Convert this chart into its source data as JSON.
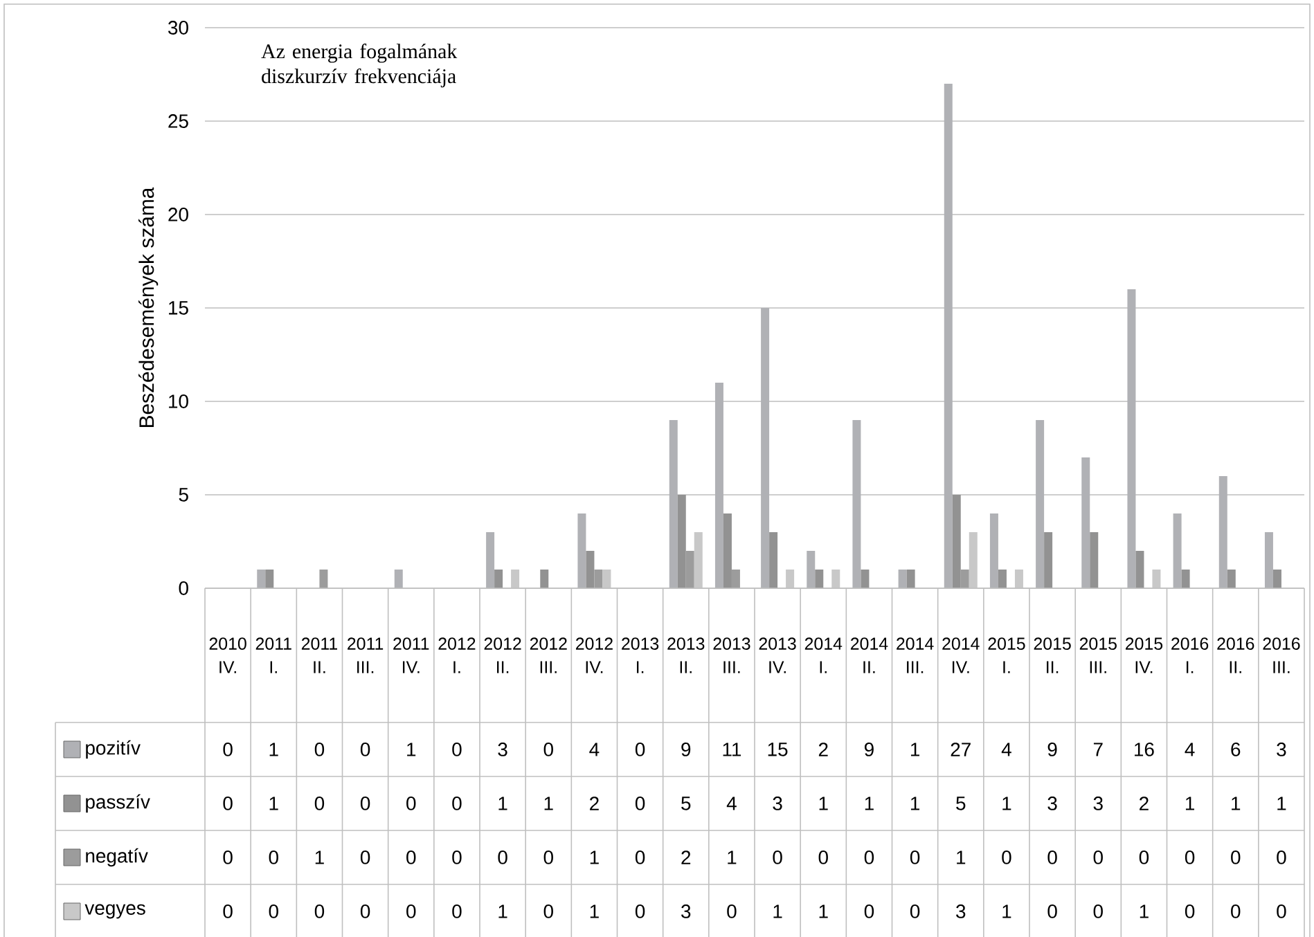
{
  "chart_data": {
    "type": "bar",
    "title": "Az energia fogalmának diszkurzív frekvenciája",
    "ylabel": "Beszédesemények száma",
    "categories": [
      "2010 IV.",
      "2011 I.",
      "2011 II.",
      "2011 III.",
      "2011 IV.",
      "2012 I.",
      "2012 II.",
      "2012 III.",
      "2012 IV.",
      "2013 I.",
      "2013 II.",
      "2013 III.",
      "2013 IV.",
      "2014 I.",
      "2014 II.",
      "2014 III.",
      "2014 IV.",
      "2015 I.",
      "2015 II.",
      "2015 III.",
      "2015 IV.",
      "2016 I.",
      "2016 II.",
      "2016 III."
    ],
    "series": [
      {
        "name": "pozitív",
        "color": "#b0b1b5",
        "values": [
          0,
          1,
          0,
          0,
          1,
          0,
          3,
          0,
          4,
          0,
          9,
          11,
          15,
          2,
          9,
          1,
          27,
          4,
          9,
          7,
          16,
          4,
          6,
          3
        ]
      },
      {
        "name": "passzív",
        "color": "#929292",
        "values": [
          0,
          1,
          0,
          0,
          0,
          0,
          1,
          1,
          2,
          0,
          5,
          4,
          3,
          1,
          1,
          1,
          5,
          1,
          3,
          3,
          2,
          1,
          1,
          1
        ]
      },
      {
        "name": "negatív",
        "color": "#9c9c9c",
        "values": [
          0,
          0,
          1,
          0,
          0,
          0,
          0,
          0,
          1,
          0,
          2,
          1,
          0,
          0,
          0,
          0,
          1,
          0,
          0,
          0,
          0,
          0,
          0,
          0
        ]
      },
      {
        "name": "vegyes",
        "color": "#c8c8c8",
        "values": [
          0,
          0,
          0,
          0,
          0,
          0,
          1,
          0,
          1,
          0,
          3,
          0,
          1,
          1,
          0,
          0,
          3,
          1,
          0,
          0,
          1,
          0,
          0,
          0
        ]
      }
    ],
    "ylim": [
      0,
      30
    ],
    "yticks": [
      0,
      5,
      10,
      15,
      20,
      25,
      30
    ],
    "grid": "y",
    "legend": "bottom left",
    "data_labels": true
  }
}
